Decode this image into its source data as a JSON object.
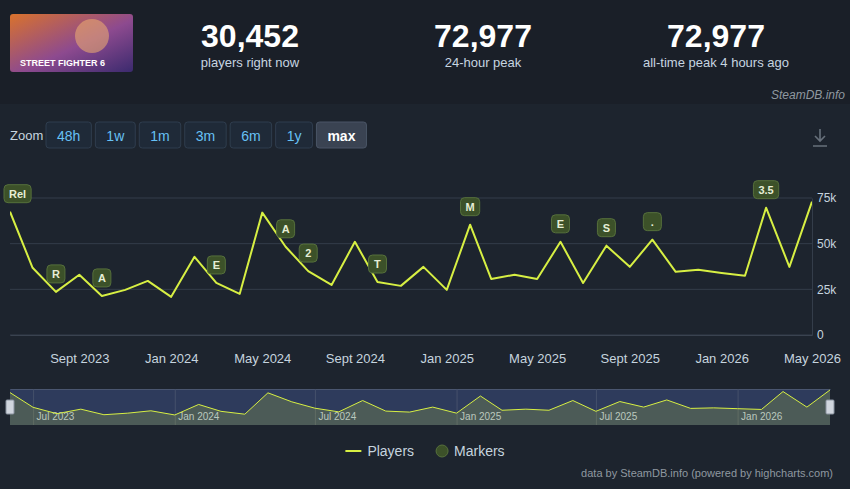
{
  "header": {
    "logo_text": "STREET FIGHTER 6",
    "stats": [
      {
        "value": "30,452",
        "label": "players right now"
      },
      {
        "value": "72,977",
        "label": "24-hour peak"
      },
      {
        "value": "72,977",
        "label": "all-time peak 4 hours ago"
      }
    ],
    "source": "SteamDB.info"
  },
  "toolbar": {
    "label": "Zoom",
    "buttons": [
      "48h",
      "1w",
      "1m",
      "3m",
      "6m",
      "1y",
      "max"
    ],
    "active": "max"
  },
  "footer": "data by SteamDB.info (powered by highcharts.com)",
  "chart_data": [
    {
      "type": "line",
      "x": [
        "2023-06",
        "2023-07",
        "2023-08",
        "2023-09",
        "2023-10",
        "2023-11",
        "2023-12",
        "2024-01",
        "2024-02",
        "2024-03",
        "2024-04",
        "2024-05",
        "2024-06",
        "2024-07",
        "2024-08",
        "2024-09",
        "2024-10",
        "2024-11",
        "2024-12",
        "2025-01",
        "2025-02",
        "2025-03",
        "2025-04",
        "2025-05",
        "2025-06",
        "2025-07",
        "2025-08",
        "2025-09",
        "2025-10",
        "2025-11",
        "2025-12",
        "2026-01",
        "2026-02",
        "2026-03",
        "2026-04",
        "2026-05"
      ],
      "series": [
        {
          "name": "Players",
          "color": "#d7ef43",
          "values": [
            67500,
            36800,
            23600,
            33000,
            21400,
            24700,
            29600,
            20900,
            42800,
            28500,
            22500,
            67000,
            48300,
            35000,
            27400,
            51000,
            29000,
            26900,
            37300,
            24700,
            60400,
            30700,
            33000,
            30700,
            51000,
            28500,
            48900,
            37300,
            52200,
            34600,
            35700,
            34000,
            32400,
            69700,
            37300,
            72977
          ]
        }
      ],
      "xlim": [
        "2023-06",
        "2026-05"
      ],
      "ylim": [
        0,
        75000
      ],
      "xticks": [
        {
          "value": "2023-09",
          "label": "Sept 2023"
        },
        {
          "value": "2024-01",
          "label": "Jan 2024"
        },
        {
          "value": "2024-05",
          "label": "May 2024"
        },
        {
          "value": "2024-09",
          "label": "Sept 2024"
        },
        {
          "value": "2025-01",
          "label": "Jan 2025"
        },
        {
          "value": "2025-05",
          "label": "May 2025"
        },
        {
          "value": "2025-09",
          "label": "Sept 2025"
        },
        {
          "value": "2026-01",
          "label": "Jan 2026"
        },
        {
          "value": "2026-05",
          "label": "May 2026"
        }
      ],
      "yticks": [
        0,
        {
          "value": 25000,
          "label": "25k"
        },
        {
          "value": 50000,
          "label": "50k"
        },
        {
          "value": 75000,
          "label": "75k"
        }
      ],
      "grid": true,
      "legend": "bottom",
      "annotations": {
        "name": "Markers",
        "color": "#3c5129",
        "items": [
          {
            "x": "2023-06",
            "text": "Rel"
          },
          {
            "x": "2023-08",
            "text": "R"
          },
          {
            "x": "2023-10",
            "text": "A"
          },
          {
            "x": "2024-03",
            "text": "E"
          },
          {
            "x": "2024-06",
            "text": "A"
          },
          {
            "x": "2024-07",
            "text": "2"
          },
          {
            "x": "2024-10",
            "text": "T"
          },
          {
            "x": "2025-02",
            "text": "M"
          },
          {
            "x": "2025-06",
            "text": "E"
          },
          {
            "x": "2025-08",
            "text": "S"
          },
          {
            "x": "2025-10",
            "text": "."
          },
          {
            "x": "2026-03",
            "text": "3.5"
          }
        ]
      }
    },
    {
      "type": "area",
      "x": [
        "2023-06",
        "2023-07",
        "2023-08",
        "2023-09",
        "2023-10",
        "2023-11",
        "2023-12",
        "2024-01",
        "2024-02",
        "2024-03",
        "2024-04",
        "2024-05",
        "2024-06",
        "2024-07",
        "2024-08",
        "2024-09",
        "2024-10",
        "2024-11",
        "2024-12",
        "2025-01",
        "2025-02",
        "2025-03",
        "2025-04",
        "2025-05",
        "2025-06",
        "2025-07",
        "2025-08",
        "2025-09",
        "2025-10",
        "2025-11",
        "2025-12",
        "2026-01",
        "2026-02",
        "2026-03",
        "2026-04",
        "2026-05"
      ],
      "series": [
        {
          "color": "#d7ef43",
          "values": [
            67500,
            36800,
            23600,
            33000,
            21400,
            24700,
            29600,
            20900,
            42800,
            28500,
            22500,
            67000,
            48300,
            35000,
            27400,
            51000,
            29000,
            26900,
            37300,
            24700,
            60400,
            30700,
            33000,
            30700,
            51000,
            28500,
            48900,
            37300,
            52200,
            34600,
            35700,
            34000,
            32400,
            69700,
            37300,
            72977
          ]
        }
      ],
      "xlim": [
        "2023-06",
        "2026-05"
      ],
      "ylim": [
        0,
        75000
      ],
      "xticks": [
        {
          "value": "2023-07",
          "label": "Jul 2023"
        },
        {
          "value": "2024-01",
          "label": "Jan 2024"
        },
        {
          "value": "2024-07",
          "label": "Jul 2024"
        },
        {
          "value": "2025-01",
          "label": "Jan 2025"
        },
        {
          "value": "2025-07",
          "label": "Jul 2025"
        },
        {
          "value": "2026-01",
          "label": "Jan 2026"
        }
      ],
      "tick_labels": "x"
    }
  ]
}
